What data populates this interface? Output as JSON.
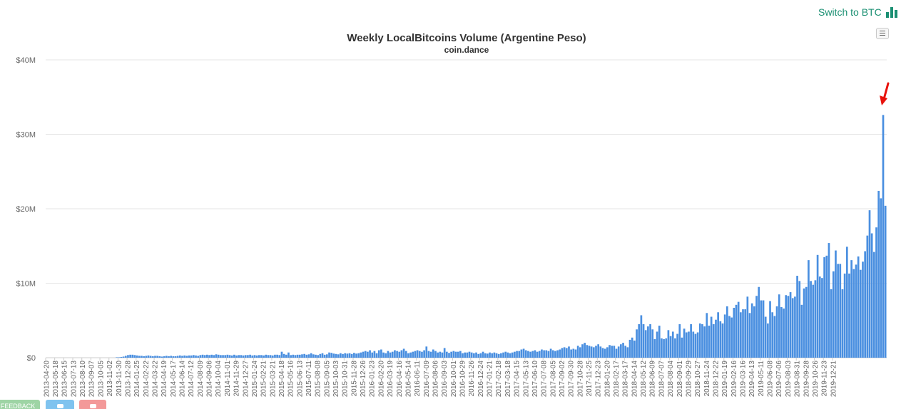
{
  "header": {
    "switch_label": "Switch to BTC",
    "switch_icon": "bar-chart-icon",
    "menu_icon": "hamburger-menu-icon"
  },
  "footer": {
    "feedback_label": "FEEDBACK",
    "twitter_icon": "twitter-icon",
    "share_icon": "share-icon"
  },
  "colors": {
    "accent": "#1a8f72",
    "bar": "#4a8fe0",
    "arrow": "#e8120c",
    "grid": "#e6e6e6"
  },
  "chart_data": {
    "type": "bar",
    "title": "Weekly LocalBitcoins Volume (Argentine Peso)",
    "subtitle": "coin.dance",
    "ylim": [
      0,
      40000000
    ],
    "yticks": [
      "$0",
      "$10M",
      "$20M",
      "$30M",
      "$40M"
    ],
    "ytick_values": [
      0,
      10000000,
      20000000,
      30000000,
      40000000
    ],
    "grid": true,
    "annotation": "red arrow pointing at the last-but-one bar",
    "x_start": "2013-04-20",
    "x_labels": [
      "2013-04-20",
      "2013-05-18",
      "2013-06-15",
      "2013-07-13",
      "2013-08-10",
      "2013-09-07",
      "2013-10-05",
      "2013-11-02",
      "2013-11-30",
      "2013-12-28",
      "2014-01-25",
      "2014-02-22",
      "2014-03-22",
      "2014-04-19",
      "2014-05-17",
      "2014-06-14",
      "2014-07-12",
      "2014-08-09",
      "2014-09-06",
      "2014-10-04",
      "2014-11-01",
      "2014-11-29",
      "2014-12-27",
      "2015-01-24",
      "2015-02-21",
      "2015-03-21",
      "2015-04-18",
      "2015-05-16",
      "2015-06-13",
      "2015-07-11",
      "2015-08-08",
      "2015-09-05",
      "2015-10-03",
      "2015-10-31",
      "2015-11-28",
      "2015-12-26",
      "2016-01-23",
      "2016-02-20",
      "2016-03-19",
      "2016-04-16",
      "2016-05-14",
      "2016-06-11",
      "2016-07-09",
      "2016-08-06",
      "2016-09-03",
      "2016-10-01",
      "2016-10-29",
      "2016-11-26",
      "2016-12-24",
      "2017-01-21",
      "2017-02-18",
      "2017-03-18",
      "2017-04-15",
      "2017-05-13",
      "2017-06-10",
      "2017-07-08",
      "2017-08-05",
      "2017-09-02",
      "2017-09-30",
      "2017-10-28",
      "2017-11-25",
      "2017-12-23",
      "2018-01-20",
      "2018-02-17",
      "2018-03-17",
      "2018-04-14",
      "2018-05-12",
      "2018-06-09",
      "2018-07-07",
      "2018-08-04",
      "2018-09-01",
      "2018-09-29",
      "2018-10-27",
      "2018-11-24",
      "2018-12-22",
      "2019-01-19",
      "2019-02-16",
      "2019-03-16",
      "2019-04-13",
      "2019-05-11",
      "2019-06-08",
      "2019-07-06",
      "2019-08-03",
      "2019-08-31",
      "2019-09-28",
      "2019-10-26",
      "2019-11-23",
      "2019-12-21"
    ],
    "values": [
      0,
      0,
      0,
      0,
      0,
      0,
      0,
      0,
      0,
      0,
      0,
      0,
      0,
      0,
      0,
      0,
      0,
      0,
      0,
      0,
      0,
      0,
      0,
      0,
      0,
      0,
      0,
      0,
      0,
      0,
      0,
      50000,
      50000,
      100000,
      150000,
      250000,
      350000,
      400000,
      400000,
      350000,
      300000,
      250000,
      250000,
      200000,
      250000,
      300000,
      250000,
      200000,
      250000,
      250000,
      200000,
      150000,
      200000,
      250000,
      200000,
      250000,
      200000,
      200000,
      250000,
      300000,
      250000,
      300000,
      250000,
      300000,
      300000,
      350000,
      300000,
      250000,
      350000,
      400000,
      350000,
      400000,
      350000,
      400000,
      350000,
      450000,
      400000,
      350000,
      350000,
      350000,
      400000,
      350000,
      300000,
      400000,
      300000,
      350000,
      350000,
      300000,
      350000,
      350000,
      400000,
      300000,
      350000,
      300000,
      350000,
      350000,
      300000,
      400000,
      350000,
      350000,
      300000,
      400000,
      400000,
      350000,
      800000,
      500000,
      400000,
      700000,
      350000,
      400000,
      350000,
      400000,
      400000,
      450000,
      500000,
      400000,
      450000,
      600000,
      450000,
      400000,
      350000,
      500000,
      600000,
      400000,
      450000,
      700000,
      650000,
      550000,
      500000,
      450000,
      600000,
      500000,
      600000,
      550000,
      600000,
      500000,
      650000,
      550000,
      600000,
      700000,
      800000,
      900000,
      800000,
      1000000,
      700000,
      900000,
      600000,
      1000000,
      1100000,
      700000,
      600000,
      900000,
      700000,
      800000,
      1000000,
      900000,
      800000,
      1000000,
      1200000,
      900000,
      600000,
      700000,
      800000,
      900000,
      1000000,
      900000,
      800000,
      1000000,
      1500000,
      900000,
      800000,
      1100000,
      900000,
      700000,
      800000,
      700000,
      1300000,
      800000,
      650000,
      800000,
      900000,
      800000,
      800000,
      900000,
      600000,
      700000,
      700000,
      800000,
      700000,
      600000,
      700000,
      500000,
      600000,
      800000,
      600000,
      550000,
      700000,
      600000,
      700000,
      600000,
      500000,
      600000,
      700000,
      800000,
      700000,
      600000,
      700000,
      800000,
      900000,
      900000,
      1100000,
      1200000,
      1000000,
      900000,
      800000,
      900000,
      1000000,
      800000,
      900000,
      1100000,
      1000000,
      1000000,
      900000,
      1200000,
      1000000,
      900000,
      1000000,
      1100000,
      1300000,
      1400000,
      1300000,
      1500000,
      1100000,
      1200000,
      1100000,
      1600000,
      1400000,
      1800000,
      2000000,
      1700000,
      1600000,
      1500000,
      1400000,
      1600000,
      1800000,
      1500000,
      1300000,
      1200000,
      1400000,
      1700000,
      1600000,
      1600000,
      1200000,
      1500000,
      1800000,
      2000000,
      1600000,
      1400000,
      2400000,
      2700000,
      2300000,
      3800000,
      4500000,
      5700000,
      4500000,
      3700000,
      4200000,
      4500000,
      3800000,
      2500000,
      3500000,
      4300000,
      2600000,
      2500000,
      2600000,
      3700000,
      2900000,
      3500000,
      2600000,
      3200000,
      4500000,
      2700000,
      3900000,
      3400000,
      3500000,
      4500000,
      3500000,
      3200000,
      3400000,
      4600000,
      4500000,
      4200000,
      6000000,
      4300000,
      5500000,
      4500000,
      5100000,
      6100000,
      4900000,
      4600000,
      5800000,
      6900000,
      5600000,
      5400000,
      6700000,
      7100000,
      7500000,
      6100000,
      6500000,
      6500000,
      8200000,
      6000000,
      7300000,
      6900000,
      8300000,
      9500000,
      7700000,
      7700000,
      5500000,
      4600000,
      7600000,
      6100000,
      5600000,
      6900000,
      8500000,
      6800000,
      6600000,
      8400000,
      8300000,
      8800000,
      8000000,
      8200000,
      11000000,
      10300000,
      7100000,
      9300000,
      9500000,
      13100000,
      10300000,
      9800000,
      10400000,
      13800000,
      10900000,
      10700000,
      13500000,
      13700000,
      15400000,
      9200000,
      11600000,
      14400000,
      12600000,
      12600000,
      9200000,
      11300000,
      14900000,
      11300000,
      13100000,
      11900000,
      12500000,
      13600000,
      11800000,
      12900000,
      14300000,
      16400000,
      19800000,
      16700000,
      14200000,
      17500000,
      22400000,
      21400000,
      32600000,
      20400000
    ]
  }
}
